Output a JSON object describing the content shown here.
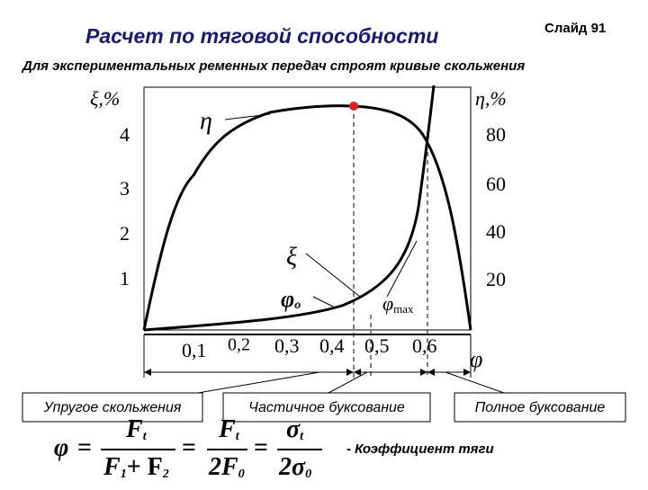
{
  "header": {
    "title": "Расчет по тяговой способности",
    "slide": "Слайд 91",
    "subtitle": "Для экспериментальных ременных передач строят кривые скольжения"
  },
  "graph": {
    "left_axis_label": "ξ,%",
    "right_axis_label": "η,%",
    "left_ticks": [
      "4",
      "3",
      "2",
      "1"
    ],
    "right_ticks": [
      "80",
      "60",
      "40",
      "20"
    ],
    "x_ticks": [
      "0,1",
      "0,2",
      "0,3",
      "0,4",
      "0,5",
      "0,6"
    ],
    "x_axis_label": "φ",
    "curve_labels": {
      "eta": "η",
      "xi": "ξ",
      "phi_o": "φ",
      "phi_o_sub": "o",
      "phi_max": "φ",
      "phi_max_sub": "max"
    }
  },
  "zones": [
    "Упругое скольжения",
    "Частичное буксование",
    "Полное буксование"
  ],
  "formula": {
    "parts": [
      "φ",
      "=",
      "F",
      "t",
      "F",
      "1",
      "+ F",
      "2",
      "=",
      "F",
      "t",
      "2F",
      "0",
      "=",
      "σ",
      "t",
      "2σ",
      "0"
    ],
    "caption": "- Коэффициент  тяги"
  }
}
